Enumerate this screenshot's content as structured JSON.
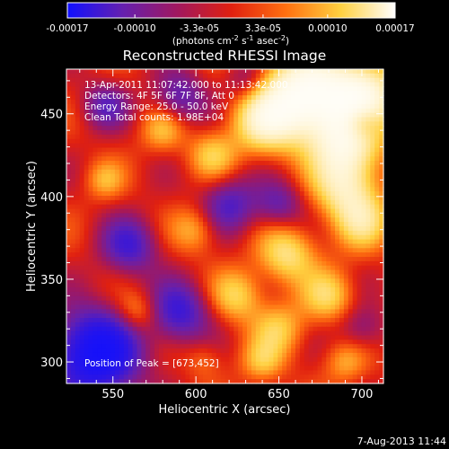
{
  "colorbar": {
    "colormap": [
      "#1010ff",
      "#6420b0",
      "#a01860",
      "#e02010",
      "#ff7010",
      "#ffd040",
      "#ffffff"
    ],
    "range": [
      -0.00017,
      0.00017
    ],
    "tick_labels": [
      "-0.00017",
      "-0.00010",
      "-3.3e-05",
      "3.3e-05",
      "0.00010",
      "0.00017"
    ],
    "tick_values": [
      -0.00017,
      -0.0001,
      -3.3e-05,
      3.3e-05,
      0.0001,
      0.00017
    ],
    "unit_label": "(photons cm$^{-2}$ s$^{-1}$ asec$^{-2}$)"
  },
  "info_lines": [
    "13-Apr-2011 11:07:42.000 to 11:13:42.000",
    "Detectors: 4F 5F 6F 7F 8F, Att 0",
    "Energy Range: 25.0 - 50.0 keV",
    "Clean    Total counts: 1.98E+04"
  ],
  "peak_label": "Position of Peak = [673,452]",
  "footer_date": "7-Aug-2013 11:44",
  "chart_data": {
    "type": "heatmap",
    "title": "Reconstructed RHESSI Image",
    "xlabel": "Heliocentric X (arcsec)",
    "ylabel": "Heliocentric Y (arcsec)",
    "xlim": [
      522,
      713
    ],
    "ylim": [
      287,
      477
    ],
    "xticks": [
      550,
      600,
      650,
      700
    ],
    "yticks": [
      300,
      350,
      400,
      450
    ],
    "xtick_labels": [
      "550",
      "600",
      "650",
      "700"
    ],
    "ytick_labels": [
      "300",
      "350",
      "400",
      "450"
    ],
    "peak_position": [
      673,
      452
    ],
    "value_range": [
      -0.00017,
      0.00017
    ],
    "blobs": [
      {
        "x": 665,
        "y": 460,
        "w": 0.0024,
        "s": 18
      },
      {
        "x": 700,
        "y": 460,
        "w": 0.0019,
        "s": 16
      },
      {
        "x": 640,
        "y": 445,
        "w": 0.0012,
        "s": 13
      },
      {
        "x": 690,
        "y": 430,
        "w": 0.0015,
        "s": 14
      },
      {
        "x": 690,
        "y": 405,
        "w": 0.0012,
        "s": 13
      },
      {
        "x": 700,
        "y": 385,
        "w": 0.001,
        "s": 12
      },
      {
        "x": 655,
        "y": 365,
        "w": 0.0011,
        "s": 12
      },
      {
        "x": 625,
        "y": 340,
        "w": 0.0009,
        "s": 11
      },
      {
        "x": 680,
        "y": 340,
        "w": 0.0009,
        "s": 11
      },
      {
        "x": 650,
        "y": 320,
        "w": 0.0008,
        "s": 11
      },
      {
        "x": 600,
        "y": 380,
        "w": 0.0007,
        "s": 10
      },
      {
        "x": 610,
        "y": 425,
        "w": 0.0008,
        "s": 10
      },
      {
        "x": 580,
        "y": 440,
        "w": 0.0007,
        "s": 9
      },
      {
        "x": 565,
        "y": 330,
        "w": 0.0007,
        "s": 9
      },
      {
        "x": 545,
        "y": 410,
        "w": 0.0006,
        "s": 8
      },
      {
        "x": 640,
        "y": 300,
        "w": 0.0007,
        "s": 9
      },
      {
        "x": 690,
        "y": 300,
        "w": 0.0006,
        "s": 9
      },
      {
        "x": 605,
        "y": 302,
        "w": 0.0004,
        "s": 8
      },
      {
        "x": 540,
        "y": 305,
        "w": -0.0022,
        "s": 18
      },
      {
        "x": 590,
        "y": 330,
        "w": -0.0012,
        "s": 13
      },
      {
        "x": 560,
        "y": 370,
        "w": -0.0011,
        "s": 12
      },
      {
        "x": 620,
        "y": 395,
        "w": -0.001,
        "s": 12
      },
      {
        "x": 650,
        "y": 395,
        "w": -0.0008,
        "s": 10
      },
      {
        "x": 590,
        "y": 460,
        "w": -0.0009,
        "s": 11
      },
      {
        "x": 545,
        "y": 455,
        "w": -0.0008,
        "s": 10
      },
      {
        "x": 700,
        "y": 445,
        "w": -0.001,
        "s": 8
      },
      {
        "x": 700,
        "y": 320,
        "w": -0.0006,
        "s": 10
      },
      {
        "x": 630,
        "y": 470,
        "w": -0.0006,
        "s": 9
      }
    ]
  }
}
